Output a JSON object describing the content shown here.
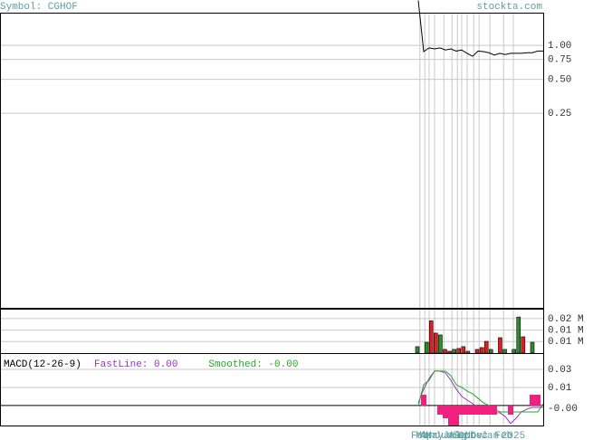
{
  "header": {
    "symbol": "Symbol: CGHOF",
    "site": "stockta.com"
  },
  "chart_data": [
    {
      "type": "line",
      "log_scale": true,
      "grid": true,
      "categories": [
        null,
        null,
        null,
        null,
        null,
        null,
        null,
        null,
        null,
        null,
        null,
        null,
        null,
        null,
        null,
        null,
        null,
        null,
        null,
        null,
        null,
        null,
        null,
        null
      ],
      "series": [
        {
          "color": "#000000",
          "values": [
            2.5,
            0.88,
            0.95,
            0.93,
            0.95,
            0.91,
            0.93,
            0.89,
            0.91,
            0.85,
            0.8,
            0.89,
            0.88,
            0.86,
            0.82,
            0.85,
            0.83,
            0.85,
            0.85,
            0.85,
            0.86,
            0.86,
            0.89,
            0.89
          ]
        }
      ],
      "ylim": [
        0.0047,
        1.95
      ],
      "yticks": [
        {
          "value": 1,
          "label": "1.00"
        },
        {
          "value": 0.75,
          "label": "0.75"
        },
        {
          "value": 0.5,
          "label": "0.50"
        },
        {
          "value": 0.25,
          "label": "0.25"
        }
      ],
      "xticks": [
        {
          "value": 0.3,
          "label": "Feb"
        },
        {
          "value": 1.2,
          "label": "Mar"
        },
        {
          "value": 2,
          "label": "Apr"
        },
        {
          "value": 3,
          "label": "May"
        },
        {
          "value": 4.7,
          "label": "Jun"
        },
        {
          "value": 6.2,
          "label": "Jul"
        },
        {
          "value": 7.2,
          "label": "Aug"
        },
        {
          "value": 8,
          "label": "Sep"
        },
        {
          "value": 9,
          "label": "Oct"
        },
        {
          "value": 10.2,
          "label": "Nov"
        },
        {
          "value": 11.2,
          "label": "Dec"
        },
        {
          "value": 13.2,
          "label": "Jan"
        },
        {
          "value": 15.7,
          "label": "Feb"
        },
        {
          "value": 17.5,
          "label": "2025"
        }
      ]
    },
    {
      "type": "bar",
      "grid": true,
      "categories": [
        null,
        null,
        null,
        null,
        null,
        null,
        null,
        null,
        null,
        null,
        null,
        null,
        null,
        null,
        null,
        null,
        null,
        null,
        null,
        null,
        null,
        null,
        null,
        null,
        null,
        null
      ],
      "values": [
        0.0028,
        null,
        0.0047,
        0.014,
        0.0087,
        0.0079,
        0.0016,
        0.0008,
        0.0016,
        0.002,
        0.0028,
        0.0008,
        null,
        0.0016,
        0.0024,
        0.0051,
        0.0016,
        null,
        0.0067,
        0.0016,
        null,
        0.0016,
        0.0157,
        0.0071,
        null,
        0.0047
      ],
      "colors": [
        "#2e8b2e",
        null,
        "#2e8b2e",
        "#e02020",
        "#e02020",
        "#2e8b2e",
        "#e02020",
        "#e02020",
        "#2e8b2e",
        "#e02020",
        "#e02020",
        "#2e8b2e",
        null,
        "#e02020",
        "#e02020",
        "#e02020",
        "#2e8b2e",
        null,
        "#e02020",
        "#2e8b2e",
        null,
        "#2e8b2e",
        "#2e8b2e",
        "#e02020",
        null,
        "#2e8b2e"
      ],
      "ylim": [
        0,
        0.0193
      ],
      "yticks": [
        {
          "value": 0.015,
          "label": "0.02 M"
        },
        {
          "value": 0.01,
          "label": "0.01 M"
        },
        {
          "value": 0.005,
          "label": "0.01 M"
        }
      ]
    },
    {
      "type": "macd",
      "title": "MACD(12-26-9)",
      "grid": true,
      "categories": [
        null,
        null,
        null,
        null,
        null,
        null,
        null,
        null,
        null,
        null,
        null,
        null,
        null,
        null,
        null,
        null,
        null,
        null,
        null,
        null,
        null,
        null,
        null,
        null
      ],
      "series": [
        {
          "name": "FastLine: 0.00",
          "color": "#9933cc",
          "kind": "line",
          "values": [
            0.0019,
            0.0113,
            0.0188,
            0.0238,
            0.0238,
            0.0225,
            0.0175,
            0.0113,
            0.0063,
            0.0038,
            0.0013,
            -0.0013,
            -0.0038,
            -0.005,
            -0.005,
            -0.005,
            -0.0075,
            -0.0125,
            -0.0088,
            -0.0044,
            -0.0025,
            -0.0013,
            -0.0013,
            -0.0013
          ]
        },
        {
          "name": "Smoothed: -0.00",
          "color": "#22aa22",
          "kind": "line",
          "values": [
            0,
            0.0144,
            0.0175,
            0.0238,
            0.0238,
            0.0238,
            0.0206,
            0.0144,
            0.0125,
            0.01,
            0.0081,
            0.005,
            0.0019,
            0,
            -0.0025,
            -0.0044,
            -0.0044,
            -0.0044,
            -0.0044,
            -0.0044,
            -0.0044,
            -0.0044,
            -0.0044,
            0.0013
          ]
        },
        {
          "color": "#f0207f",
          "kind": "bar",
          "values": [
            0,
            0.0075,
            0,
            0,
            -0.0063,
            -0.0088,
            -0.0138,
            -0.0138,
            -0.0063,
            -0.0063,
            -0.0063,
            -0.0063,
            -0.0063,
            -0.0063,
            -0.0063,
            0,
            0,
            -0.0063,
            0,
            0,
            0,
            0.0075,
            0.0075,
            0
          ]
        }
      ],
      "ylim": [
        -0.0138,
        0.0356
      ],
      "yticks": [
        {
          "value": 0.025,
          "label": "0.03"
        },
        {
          "value": 0.0125,
          "label": "0.01"
        },
        {
          "value": 0,
          "label": "-0.00"
        }
      ]
    }
  ]
}
